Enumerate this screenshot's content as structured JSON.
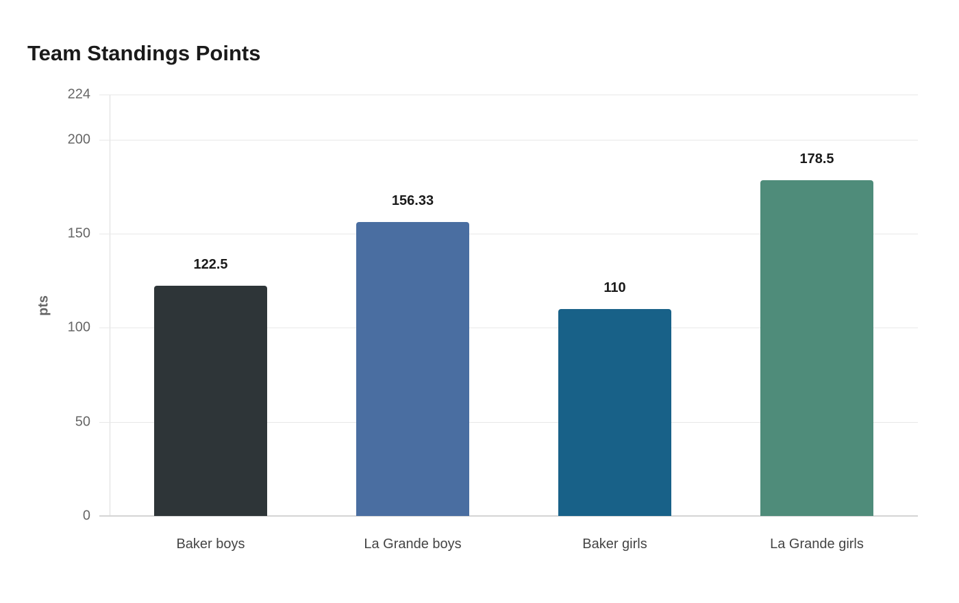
{
  "chart_data": {
    "type": "bar",
    "title": "Team Standings Points",
    "xlabel": "",
    "ylabel": "pts",
    "categories": [
      "Baker boys",
      "La Grande boys",
      "Baker girls",
      "La Grande girls"
    ],
    "values": [
      122.5,
      156.33,
      110,
      178.5
    ],
    "value_labels": [
      "122.5",
      "156.33",
      "110",
      "178.5"
    ],
    "colors": [
      "#2e3538",
      "#4a6ea1",
      "#186188",
      "#4f8c7a"
    ],
    "ylim": [
      0,
      224
    ],
    "yticks": [
      0,
      50,
      100,
      150,
      200,
      224
    ],
    "grid": true,
    "legend": "none"
  }
}
